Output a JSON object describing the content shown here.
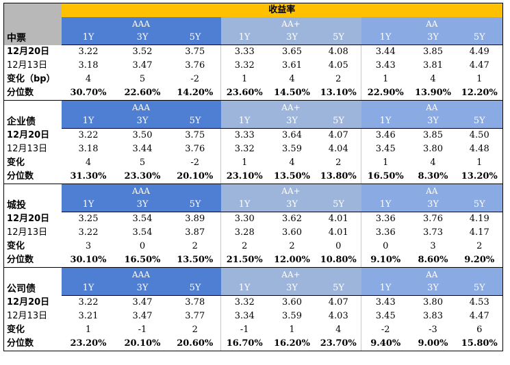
{
  "title": "收益率",
  "groups": [
    "AAA",
    "AA+",
    "AA"
  ],
  "tenors": [
    "1Y",
    "3Y",
    "5Y"
  ],
  "sections": [
    {
      "name": "中票",
      "rows": [
        {
          "label": "12月20日",
          "values": [
            "3.22",
            "3.52",
            "3.75",
            "3.33",
            "3.65",
            "4.08",
            "3.44",
            "3.85",
            "4.49"
          ]
        },
        {
          "label": "12月13日",
          "values": [
            "3.18",
            "3.47",
            "3.76",
            "3.32",
            "3.61",
            "4.05",
            "3.43",
            "3.81",
            "4.47"
          ]
        },
        {
          "label": "变化（bp）",
          "values": [
            "4",
            "5",
            "-2",
            "1",
            "4",
            "2",
            "1",
            "4",
            "1"
          ]
        },
        {
          "label": "分位数",
          "values": [
            "30.70%",
            "22.60%",
            "14.20%",
            "23.60%",
            "14.50%",
            "13.10%",
            "22.90%",
            "13.90%",
            "12.20%"
          ]
        }
      ]
    },
    {
      "name": "企业债",
      "rows": [
        {
          "label": "12月20日",
          "values": [
            "3.22",
            "3.50",
            "3.75",
            "3.33",
            "3.64",
            "4.07",
            "3.46",
            "3.85",
            "4.50"
          ]
        },
        {
          "label": "12月13日",
          "values": [
            "3.18",
            "3.44",
            "3.76",
            "3.32",
            "3.59",
            "4.04",
            "3.45",
            "3.80",
            "4.48"
          ]
        },
        {
          "label": "变化",
          "values": [
            "4",
            "5",
            "-2",
            "1",
            "4",
            "2",
            "1",
            "4",
            "1"
          ]
        },
        {
          "label": "分位数",
          "values": [
            "31.30%",
            "23.30%",
            "20.10%",
            "23.10%",
            "13.50%",
            "13.80%",
            "16.50%",
            "8.30%",
            "13.20%"
          ]
        }
      ]
    },
    {
      "name": "城投",
      "rows": [
        {
          "label": "12月20日",
          "values": [
            "3.25",
            "3.54",
            "3.89",
            "3.30",
            "3.62",
            "4.01",
            "3.36",
            "3.76",
            "4.19"
          ]
        },
        {
          "label": "12月13日",
          "values": [
            "3.22",
            "3.54",
            "3.87",
            "3.28",
            "3.60",
            "4.01",
            "3.36",
            "3.73",
            "4.17"
          ]
        },
        {
          "label": "变化",
          "values": [
            "3",
            "0",
            "2",
            "2",
            "2",
            "0",
            "0",
            "3",
            "2"
          ]
        },
        {
          "label": "分位数",
          "values": [
            "30.10%",
            "16.50%",
            "13.50%",
            "21.50%",
            "12.00%",
            "10.80%",
            "9.10%",
            "8.60%",
            "9.20%"
          ]
        }
      ]
    },
    {
      "name": "公司债",
      "rows": [
        {
          "label": "12月20日",
          "values": [
            "3.22",
            "3.47",
            "3.78",
            "3.32",
            "3.60",
            "4.07",
            "3.43",
            "3.80",
            "4.53"
          ]
        },
        {
          "label": "12月13日",
          "values": [
            "3.21",
            "3.47",
            "3.77",
            "3.34",
            "3.59",
            "4.03",
            "3.45",
            "3.83",
            "4.47"
          ]
        },
        {
          "label": "变化",
          "values": [
            "1",
            "-1",
            "2",
            "-1",
            "1",
            "4",
            "-2",
            "-3",
            "6"
          ]
        },
        {
          "label": "分位数",
          "values": [
            "23.20%",
            "20.10%",
            "20.60%",
            "16.70%",
            "16.20%",
            "23.70%",
            "9.40%",
            "9.00%",
            "15.80%"
          ]
        }
      ]
    }
  ],
  "colors": {
    "title_bg": "#ffc000",
    "aaa_bg": "#4f7fd2",
    "aaplus_bg": "#9eb5db",
    "aa_bg": "#89aae2",
    "corner_bg": "#b8b8b8"
  }
}
